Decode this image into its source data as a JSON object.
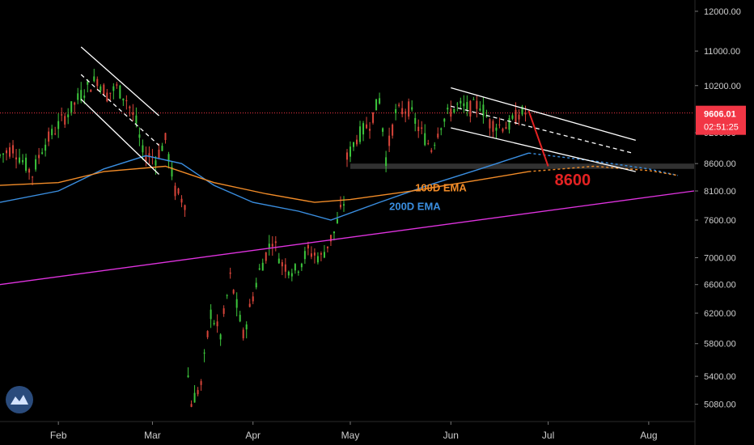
{
  "chart_data": {
    "type": "candlestick",
    "title": "",
    "xlabel": "",
    "ylabel": "",
    "y_scale": "log",
    "ylim": [
      4900,
      12300
    ],
    "x_range": [
      "2020-01-14",
      "2020-08-15"
    ],
    "x_ticks": [
      {
        "label": "Feb",
        "date": "2020-02-01"
      },
      {
        "label": "Mar",
        "date": "2020-03-01"
      },
      {
        "label": "Apr",
        "date": "2020-04-01"
      },
      {
        "label": "May",
        "date": "2020-05-01"
      },
      {
        "label": "Jun",
        "date": "2020-06-01"
      },
      {
        "label": "Jul",
        "date": "2020-07-01"
      },
      {
        "label": "Aug",
        "date": "2020-08-01"
      }
    ],
    "y_ticks": [
      "12000.00",
      "11000.00",
      "10200.00",
      "9200.00",
      "8600.00",
      "8100.00",
      "7600.00",
      "7000.00",
      "6600.00",
      "6200.00",
      "5800.00",
      "5400.00",
      "5080.00"
    ],
    "current_price": {
      "value": 9606.01,
      "label": "9606.01",
      "countdown": "02:51:25",
      "color": "#f23645"
    },
    "price_points": [
      [
        "2020-01-14",
        8750
      ],
      [
        "2020-01-18",
        8900
      ],
      [
        "2020-01-24",
        8400
      ],
      [
        "2020-01-27",
        8900
      ],
      [
        "2020-02-01",
        9350
      ],
      [
        "2020-02-05",
        9700
      ],
      [
        "2020-02-09",
        10100
      ],
      [
        "2020-02-13",
        10350
      ],
      [
        "2020-02-16",
        10000
      ],
      [
        "2020-02-19",
        10150
      ],
      [
        "2020-02-22",
        9900
      ],
      [
        "2020-02-25",
        9400
      ],
      [
        "2020-02-27",
        8800
      ],
      [
        "2020-03-02",
        8700
      ],
      [
        "2020-03-05",
        9050
      ],
      [
        "2020-03-08",
        8100
      ],
      [
        "2020-03-11",
        7900
      ],
      [
        "2020-03-12",
        5400
      ],
      [
        "2020-03-13",
        5100
      ],
      [
        "2020-03-16",
        5300
      ],
      [
        "2020-03-19",
        6200
      ],
      [
        "2020-03-22",
        5900
      ],
      [
        "2020-03-25",
        6700
      ],
      [
        "2020-03-29",
        5900
      ],
      [
        "2020-04-03",
        6800
      ],
      [
        "2020-04-07",
        7300
      ],
      [
        "2020-04-10",
        6900
      ],
      [
        "2020-04-14",
        6800
      ],
      [
        "2020-04-18",
        7100
      ],
      [
        "2020-04-22",
        7000
      ],
      [
        "2020-04-26",
        7400
      ],
      [
        "2020-04-29",
        7900
      ],
      [
        "2020-04-30",
        8700
      ],
      [
        "2020-05-03",
        9100
      ],
      [
        "2020-05-07",
        9400
      ],
      [
        "2020-05-10",
        9900
      ],
      [
        "2020-05-12",
        8700
      ],
      [
        "2020-05-15",
        9600
      ],
      [
        "2020-05-19",
        9700
      ],
      [
        "2020-05-22",
        9300
      ],
      [
        "2020-05-26",
        8900
      ],
      [
        "2020-05-29",
        9400
      ],
      [
        "2020-06-01",
        9650
      ],
      [
        "2020-06-03",
        9750
      ],
      [
        "2020-06-07",
        9700
      ],
      [
        "2020-06-10",
        9800
      ],
      [
        "2020-06-13",
        9400
      ],
      [
        "2020-06-16",
        9350
      ],
      [
        "2020-06-19",
        9350
      ],
      [
        "2020-06-22",
        9600
      ],
      [
        "2020-06-25",
        9606
      ]
    ],
    "series": [
      {
        "name": "200D EMA",
        "color": "#3a8ee0",
        "points": [
          [
            "2020-01-14",
            7900
          ],
          [
            "2020-02-01",
            8100
          ],
          [
            "2020-02-15",
            8500
          ],
          [
            "2020-02-28",
            8750
          ],
          [
            "2020-03-10",
            8600
          ],
          [
            "2020-03-20",
            8200
          ],
          [
            "2020-04-01",
            7900
          ],
          [
            "2020-04-15",
            7750
          ],
          [
            "2020-04-25",
            7600
          ],
          [
            "2020-05-10",
            7900
          ],
          [
            "2020-05-25",
            8200
          ],
          [
            "2020-06-10",
            8500
          ],
          [
            "2020-06-25",
            8800
          ]
        ],
        "projection": [
          [
            "2020-06-25",
            8800
          ],
          [
            "2020-07-15",
            8650
          ],
          [
            "2020-08-01",
            8500
          ],
          [
            "2020-08-10",
            8380
          ]
        ]
      },
      {
        "name": "100D EMA",
        "color": "#f28c28",
        "points": [
          [
            "2020-01-14",
            8200
          ],
          [
            "2020-02-01",
            8250
          ],
          [
            "2020-02-15",
            8450
          ],
          [
            "2020-03-05",
            8550
          ],
          [
            "2020-03-20",
            8250
          ],
          [
            "2020-04-05",
            8050
          ],
          [
            "2020-04-20",
            7900
          ],
          [
            "2020-05-01",
            7950
          ],
          [
            "2020-05-20",
            8100
          ],
          [
            "2020-06-10",
            8300
          ],
          [
            "2020-06-25",
            8450
          ]
        ],
        "projection": [
          [
            "2020-06-25",
            8450
          ],
          [
            "2020-07-15",
            8550
          ],
          [
            "2020-08-01",
            8470
          ],
          [
            "2020-08-10",
            8380
          ]
        ]
      }
    ],
    "annotations": [
      {
        "text": "100D EMA",
        "color": "#f28c28",
        "at": [
          "2020-05-21",
          8090
        ]
      },
      {
        "text": "200D EMA",
        "color": "#3a8ee0",
        "at": [
          "2020-05-13",
          7770
        ]
      },
      {
        "text": "8600",
        "color": "#e32222",
        "at": [
          "2020-07-03",
          8200
        ]
      }
    ],
    "trendlines": [
      {
        "name": "magenta-trendline",
        "color": "#e033e0",
        "points": [
          [
            "2020-01-14",
            6600
          ],
          [
            "2020-08-15",
            8100
          ]
        ]
      },
      {
        "name": "feb-channel-upper",
        "color": "#ffffff",
        "points": [
          [
            "2020-02-08",
            11100
          ],
          [
            "2020-03-03",
            9550
          ]
        ]
      },
      {
        "name": "feb-channel-lower",
        "color": "#ffffff",
        "points": [
          [
            "2020-02-08",
            9900
          ],
          [
            "2020-03-03",
            8400
          ]
        ]
      },
      {
        "name": "june-channel-upper",
        "color": "#ffffff",
        "points": [
          [
            "2020-06-01",
            10150
          ],
          [
            "2020-07-28",
            9050
          ]
        ]
      },
      {
        "name": "june-channel-lower",
        "color": "#ffffff",
        "points": [
          [
            "2020-06-01",
            9300
          ],
          [
            "2020-07-28",
            8450
          ]
        ]
      },
      {
        "name": "june-channel-mid",
        "color": "#ffffff",
        "dashed": true,
        "points": [
          [
            "2020-06-01",
            9750
          ],
          [
            "2020-07-27",
            8800
          ]
        ]
      },
      {
        "name": "feb-channel-mid",
        "color": "#ffffff",
        "dashed": true,
        "points": [
          [
            "2020-02-08",
            10450
          ],
          [
            "2020-03-03",
            8950
          ]
        ]
      },
      {
        "name": "projection-arrow",
        "color": "#e32222",
        "points": [
          [
            "2020-06-25",
            9650
          ],
          [
            "2020-07-01",
            8550
          ]
        ]
      }
    ],
    "support_zone": {
      "from": "2020-05-01",
      "to": "2020-08-15",
      "low": 8500,
      "high": 8600,
      "color": "#3a3a3a"
    },
    "grid": false,
    "legend": "none"
  },
  "logo": {
    "icon": "tradingview-cloud-icon"
  }
}
